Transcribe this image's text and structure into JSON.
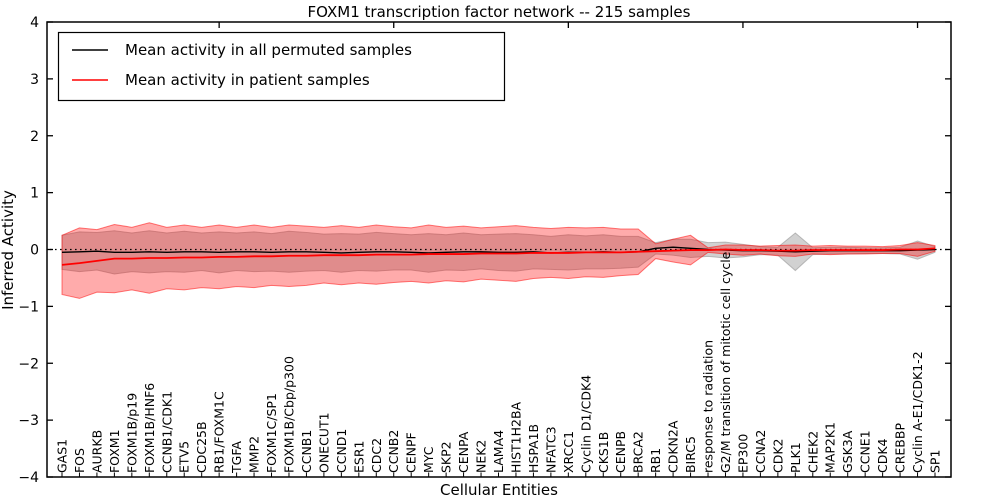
{
  "title": "FOXM1 transcription factor network -- 215 samples",
  "axes": {
    "ylabel": "Inferred Activity",
    "xlabel": "Cellular Entities",
    "ylim": [
      -4,
      4
    ],
    "yticks": [
      4,
      3,
      2,
      1,
      0,
      -1,
      -2,
      -3,
      -4
    ],
    "top_tick_indices": [
      9,
      19,
      29,
      39,
      49
    ],
    "grid": "off",
    "zero_line_style": "dotted black at y=0"
  },
  "legend": {
    "position": "upper left",
    "entries": [
      {
        "label": "Mean activity in all permuted samples",
        "color": "#000000"
      },
      {
        "label": "Mean activity in patient samples",
        "color": "#ff0000"
      }
    ]
  },
  "chart_data": {
    "type": "line",
    "title": "FOXM1 transcription factor network -- 215 samples",
    "xlabel": "Cellular Entities",
    "ylabel": "Inferred Activity",
    "ylim": [
      -4,
      4
    ],
    "categories": [
      "GAS1",
      "FOS",
      "AURKB",
      "FOXM1",
      "FOXM1B/p19",
      "FOXM1B/HNF6",
      "CCNB1/CDK1",
      "ETV5",
      "CDC25B",
      "RB1/FOXM1C",
      "TGFA",
      "MMP2",
      "FOXM1C/SP1",
      "FOXM1B/Cbp/p300",
      "CCNB1",
      "ONECUT1",
      "CCND1",
      "ESR1",
      "CDC2",
      "CCNB2",
      "CENPF",
      "MYC",
      "SKP2",
      "CENPA",
      "NEK2",
      "LAMA4",
      "HIST1H2BA",
      "HSPA1B",
      "NFATC3",
      "XRCC1",
      "Cyclin D1/CDK4",
      "CKS1B",
      "CENPB",
      "BRCA2",
      "RB1",
      "CDKN2A",
      "BIRC5",
      "response to radiation",
      "G2/M transition of mitotic cell cycle",
      "EP300",
      "CCNA2",
      "CDK2",
      "PLK1",
      "CHEK2",
      "MAP2K1",
      "GSK3A",
      "CCNE1",
      "CDK4",
      "CREBBP",
      "Cyclin A-E1/CDK1-2",
      "SP1"
    ],
    "series": [
      {
        "name": "Mean activity in all permuted samples",
        "line_color": "#000000",
        "band_color": "#999999",
        "band_alpha": 0.45,
        "values": [
          -0.05,
          -0.04,
          -0.03,
          -0.05,
          -0.05,
          -0.04,
          -0.05,
          -0.04,
          -0.04,
          -0.05,
          -0.04,
          -0.04,
          -0.05,
          -0.04,
          -0.04,
          -0.05,
          -0.06,
          -0.05,
          -0.04,
          -0.04,
          -0.05,
          -0.06,
          -0.05,
          -0.04,
          -0.04,
          -0.05,
          -0.05,
          -0.04,
          -0.06,
          -0.05,
          -0.05,
          -0.04,
          -0.05,
          -0.04,
          0.02,
          0.04,
          0.02,
          0.0,
          -0.01,
          -0.02,
          -0.02,
          -0.03,
          -0.04,
          -0.03,
          -0.02,
          -0.02,
          -0.02,
          -0.02,
          -0.02,
          -0.01,
          0.0
        ],
        "band_halfwidth": [
          0.3,
          0.35,
          0.33,
          0.38,
          0.34,
          0.37,
          0.34,
          0.36,
          0.33,
          0.36,
          0.33,
          0.35,
          0.33,
          0.36,
          0.34,
          0.32,
          0.34,
          0.32,
          0.34,
          0.32,
          0.31,
          0.34,
          0.31,
          0.33,
          0.3,
          0.32,
          0.33,
          0.3,
          0.29,
          0.31,
          0.29,
          0.3,
          0.28,
          0.27,
          0.1,
          0.14,
          0.16,
          0.12,
          0.14,
          0.11,
          0.07,
          0.07,
          0.33,
          0.06,
          0.06,
          0.06,
          0.05,
          0.05,
          0.06,
          0.16,
          0.05
        ]
      },
      {
        "name": "Mean activity in patient samples",
        "line_color": "#ff0000",
        "band_color": "#ff0000",
        "band_alpha": 0.33,
        "values": [
          -0.27,
          -0.24,
          -0.2,
          -0.16,
          -0.16,
          -0.15,
          -0.15,
          -0.14,
          -0.14,
          -0.13,
          -0.13,
          -0.12,
          -0.12,
          -0.11,
          -0.11,
          -0.1,
          -0.1,
          -0.1,
          -0.09,
          -0.09,
          -0.09,
          -0.08,
          -0.08,
          -0.08,
          -0.07,
          -0.07,
          -0.07,
          -0.06,
          -0.06,
          -0.06,
          -0.05,
          -0.05,
          -0.05,
          -0.04,
          -0.03,
          -0.02,
          -0.01,
          -0.01,
          0.0,
          -0.01,
          -0.01,
          -0.02,
          -0.02,
          -0.01,
          -0.01,
          -0.01,
          -0.01,
          -0.01,
          0.0,
          0.0,
          0.02
        ],
        "band_halfwidth": [
          0.52,
          0.62,
          0.55,
          0.6,
          0.55,
          0.62,
          0.54,
          0.57,
          0.53,
          0.56,
          0.52,
          0.55,
          0.51,
          0.54,
          0.52,
          0.49,
          0.52,
          0.49,
          0.52,
          0.49,
          0.47,
          0.51,
          0.47,
          0.49,
          0.45,
          0.47,
          0.49,
          0.45,
          0.43,
          0.45,
          0.43,
          0.44,
          0.41,
          0.4,
          0.13,
          0.2,
          0.26,
          0.04,
          0.08,
          0.09,
          0.07,
          0.09,
          0.1,
          0.07,
          0.08,
          0.07,
          0.07,
          0.06,
          0.07,
          0.12,
          0.05
        ]
      }
    ]
  }
}
